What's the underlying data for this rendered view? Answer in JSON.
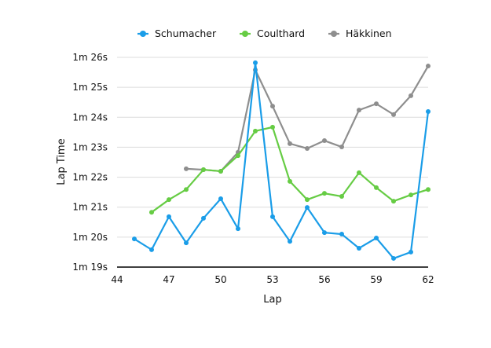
{
  "chart_data": {
    "type": "line",
    "title": "",
    "xlabel": "Lap",
    "ylabel": "Lap Time",
    "xlim": [
      44,
      62
    ],
    "ylim": [
      79,
      86
    ],
    "x_ticks": [
      44,
      47,
      50,
      53,
      56,
      59,
      62
    ],
    "y_ticks": [
      79,
      80,
      81,
      82,
      83,
      84,
      85,
      86
    ],
    "y_tick_labels": [
      "1m 19s",
      "1m 20s",
      "1m 21s",
      "1m 22s",
      "1m 23s",
      "1m 24s",
      "1m 25s",
      "1m 26s"
    ],
    "grid": "horizontal",
    "legend_placement": "top",
    "series": [
      {
        "name": "Schumacher",
        "color": "#1a9de8",
        "x": [
          45,
          46,
          47,
          48,
          49,
          50,
          51,
          52,
          53,
          54,
          55,
          56,
          57,
          58,
          59,
          60,
          61,
          62
        ],
        "y": [
          79.94,
          79.58,
          80.68,
          79.81,
          80.63,
          81.28,
          80.28,
          85.82,
          80.68,
          79.86,
          80.99,
          80.15,
          80.1,
          79.63,
          79.97,
          79.29,
          79.5,
          84.19
        ]
      },
      {
        "name": "Coulthard",
        "color": "#66cc44",
        "x": [
          46,
          47,
          48,
          49,
          50,
          51,
          52,
          53,
          54,
          55,
          56,
          57,
          58,
          59,
          60,
          61,
          62
        ],
        "y": [
          80.83,
          81.25,
          81.59,
          82.25,
          82.2,
          82.72,
          83.54,
          83.67,
          81.86,
          81.25,
          81.46,
          81.36,
          82.15,
          81.65,
          81.2,
          81.41,
          81.59
        ]
      },
      {
        "name": "Häkkinen",
        "color": "#8e8e8e",
        "x": [
          48,
          49,
          50,
          51,
          52,
          53,
          54,
          55,
          56,
          57,
          58,
          59,
          60,
          61,
          62
        ],
        "y": [
          82.28,
          82.25,
          82.2,
          82.83,
          85.58,
          84.37,
          83.12,
          82.96,
          83.22,
          83.01,
          84.24,
          84.45,
          84.09,
          84.72,
          85.71
        ]
      }
    ]
  }
}
